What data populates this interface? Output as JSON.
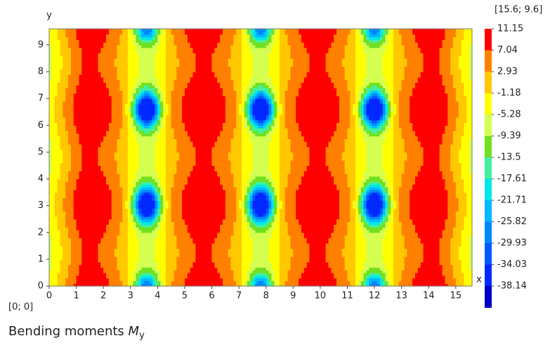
{
  "chart_data": {
    "type": "contour",
    "title": "Bending moments ",
    "title_symbol": "M",
    "title_subscript": "y",
    "xlabel": "x",
    "ylabel": "y",
    "xlim": [
      0,
      15.6
    ],
    "ylim": [
      0,
      9.6
    ],
    "xticks": [
      0,
      1,
      2,
      3,
      4,
      5,
      6,
      7,
      8,
      9,
      10,
      11,
      12,
      13,
      14,
      15
    ],
    "yticks": [
      0,
      1,
      2,
      3,
      4,
      5,
      6,
      7,
      8,
      9
    ],
    "upper_corner_label": "[15.6; 9.6]",
    "lower_corner_label": "[0; 0]",
    "levels": [
      11.15,
      7.04,
      2.93,
      -1.18,
      -5.28,
      -9.39,
      -13.5,
      -17.61,
      -21.71,
      -25.82,
      -29.93,
      -34.03,
      -38.14
    ],
    "colors": [
      "#ff0000",
      "#ff8000",
      "#ffc800",
      "#ffff00",
      "#d4ff50",
      "#70e020",
      "#40f0a0",
      "#00e8e8",
      "#00b8ff",
      "#0088ff",
      "#0058ff",
      "#0028ff",
      "#0000c8"
    ]
  }
}
